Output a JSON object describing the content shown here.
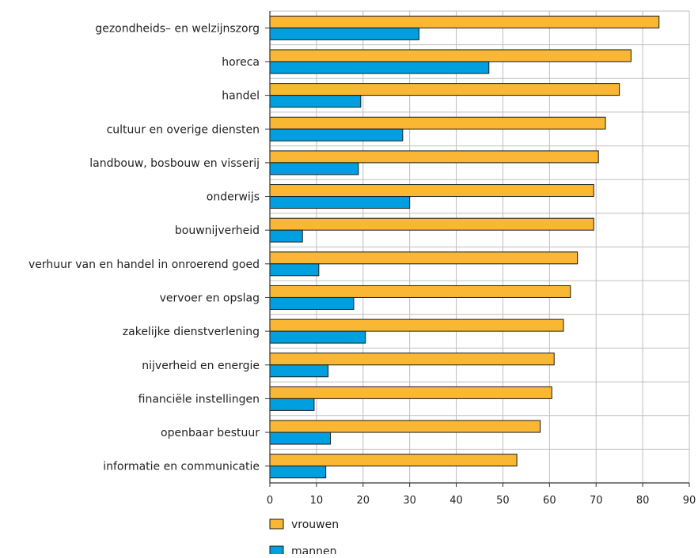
{
  "chart_data": {
    "type": "bar",
    "orientation": "horizontal",
    "categories": [
      "gezondheids– en welzijnszorg",
      "horeca",
      "handel",
      "cultuur en overige diensten",
      "landbouw, bosbouw en visserij",
      "onderwijs",
      "bouwnijverheid",
      "verhuur van en handel in onroerend goed",
      "vervoer en opslag",
      "zakelijke dienstverlening",
      "nijverheid en energie",
      "financiële instellingen",
      "openbaar bestuur",
      "informatie en communicatie"
    ],
    "series": [
      {
        "name": "vrouwen",
        "color": "#F9B734",
        "values": [
          83.5,
          77.5,
          75,
          72,
          70.5,
          69.5,
          69.5,
          66,
          64.5,
          63,
          61,
          60.5,
          58,
          53
        ]
      },
      {
        "name": "mannen",
        "color": "#00A0E0",
        "values": [
          32,
          47,
          19.5,
          28.5,
          19,
          30,
          7,
          10.5,
          18,
          20.5,
          12.5,
          9.5,
          13,
          12
        ]
      }
    ],
    "xlim": [
      0,
      90
    ],
    "xticks": [
      "0",
      "10",
      "20",
      "30",
      "40",
      "50",
      "60",
      "70",
      "80",
      "90"
    ],
    "grid": true,
    "legend": "bottom-left",
    "title": "",
    "xlabel": "",
    "ylabel": ""
  }
}
